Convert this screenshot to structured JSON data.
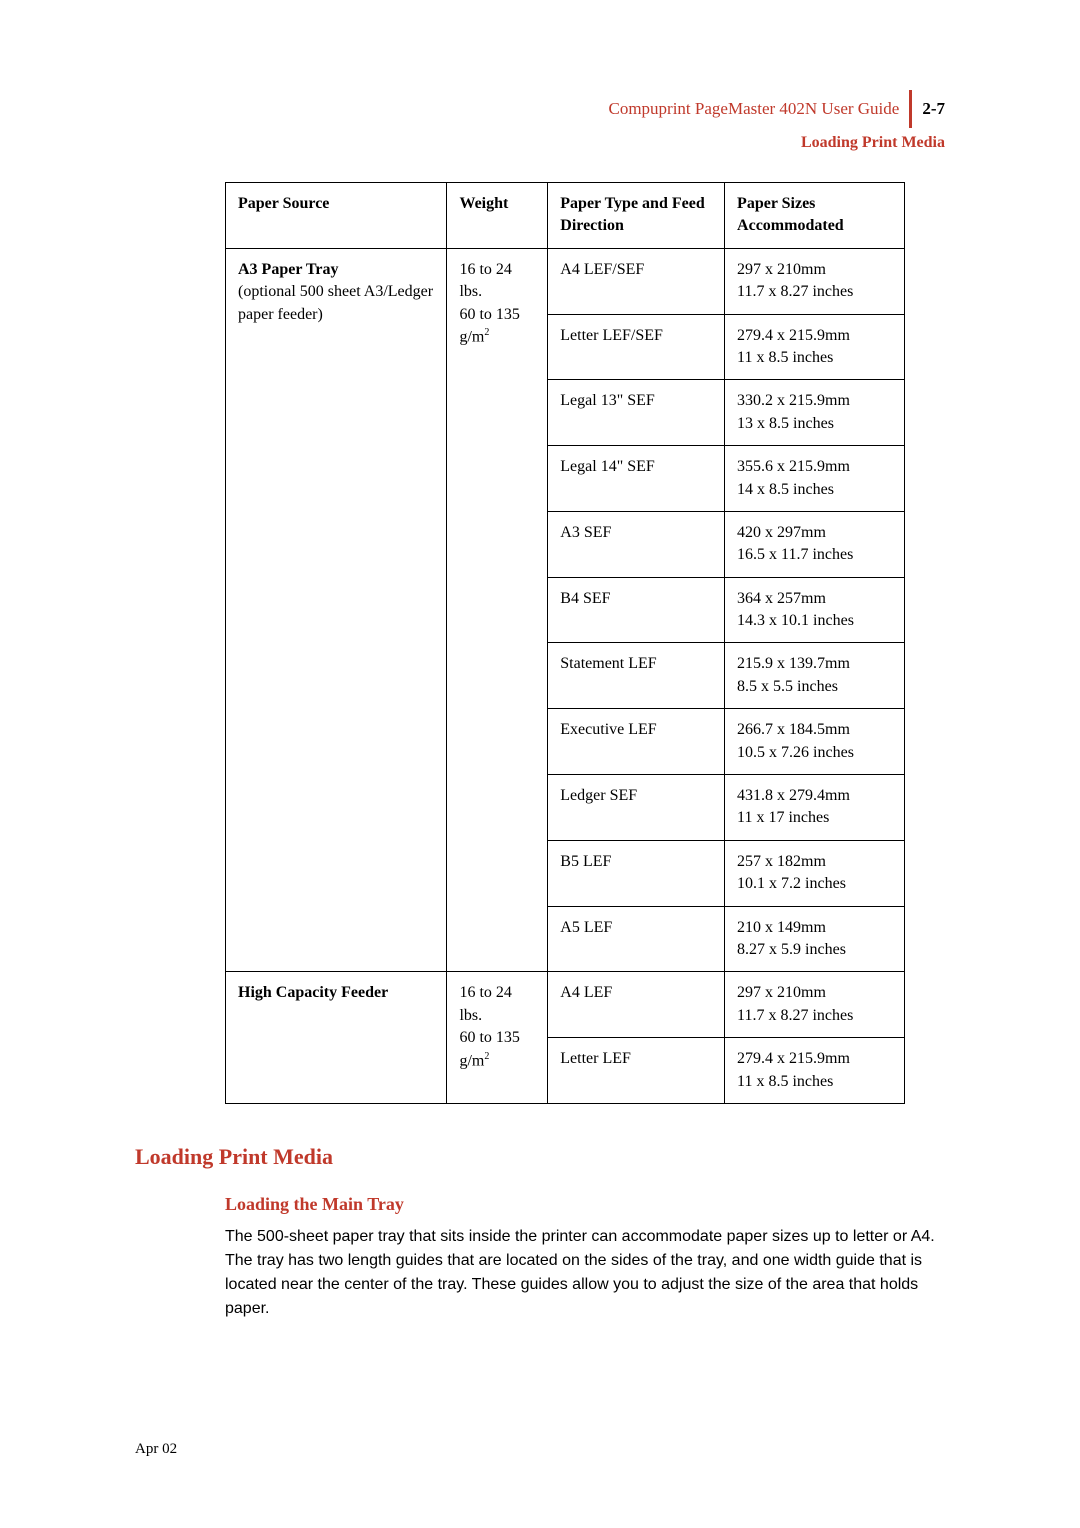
{
  "header": {
    "left": "Compuprint PageMaster 402N User Guide",
    "page": "2-7",
    "sub": "Loading Print Media"
  },
  "table": {
    "columns": [
      "Paper Source",
      "Weight",
      "Paper Type and Feed Direction",
      "Paper Sizes Accommodated"
    ],
    "sources": [
      {
        "name_strong": "A3 Paper Tray",
        "name_rest": "(optional 500 sheet A3/Ledger paper feeder)",
        "weight_line1": "16 to 24 lbs.",
        "weight_line2_prefix": "60 to 135 g/m",
        "weight_line2_sup": "2",
        "rows": [
          {
            "type": "A4 LEF/SEF",
            "size_mm": "297 x 210mm",
            "size_in": "11.7 x 8.27 inches"
          },
          {
            "type": "Letter LEF/SEF",
            "size_mm": "279.4 x 215.9mm",
            "size_in": "11 x 8.5 inches"
          },
          {
            "type": "Legal 13\" SEF",
            "size_mm": "330.2 x 215.9mm",
            "size_in": "13 x 8.5 inches"
          },
          {
            "type": "Legal 14\" SEF",
            "size_mm": "355.6 x 215.9mm",
            "size_in": "14 x 8.5 inches"
          },
          {
            "type": "A3 SEF",
            "size_mm": "420 x 297mm",
            "size_in": "16.5 x 11.7 inches"
          },
          {
            "type": "B4 SEF",
            "size_mm": "364 x 257mm",
            "size_in": "14.3 x 10.1 inches"
          },
          {
            "type": "Statement LEF",
            "size_mm": "215.9 x 139.7mm",
            "size_in": "8.5 x 5.5 inches"
          },
          {
            "type": "Executive LEF",
            "size_mm": "266.7 x 184.5mm",
            "size_in": "10.5 x 7.26 inches"
          },
          {
            "type": "Ledger SEF",
            "size_mm": "431.8 x 279.4mm",
            "size_in": "11 x 17 inches"
          },
          {
            "type": "B5 LEF",
            "size_mm": "257 x 182mm",
            "size_in": "10.1 x 7.2 inches"
          },
          {
            "type": "A5 LEF",
            "size_mm": "210 x 149mm",
            "size_in": "8.27 x 5.9 inches"
          }
        ]
      },
      {
        "name_strong": "High Capacity Feeder",
        "name_rest": "",
        "weight_line1": "16 to 24 lbs.",
        "weight_line2_prefix": "60 to 135 g/m",
        "weight_line2_sup": "2",
        "rows": [
          {
            "type": "A4 LEF",
            "size_mm": "297 x 210mm",
            "size_in": "11.7 x 8.27 inches"
          },
          {
            "type": "Letter LEF",
            "size_mm": "279.4 x 215.9mm",
            "size_in": "11 x 8.5 inches"
          }
        ]
      }
    ]
  },
  "section_title": "Loading Print Media",
  "subsection_title": "Loading the Main Tray",
  "body_text": "The 500-sheet paper tray that sits inside the printer can accommodate paper sizes up to letter or A4. The tray has two length guides that are located on the sides of the tray, and one width guide that is located near the center of the tray. These guides allow you to adjust the size of the area that holds paper.",
  "footer": "Apr 02"
}
